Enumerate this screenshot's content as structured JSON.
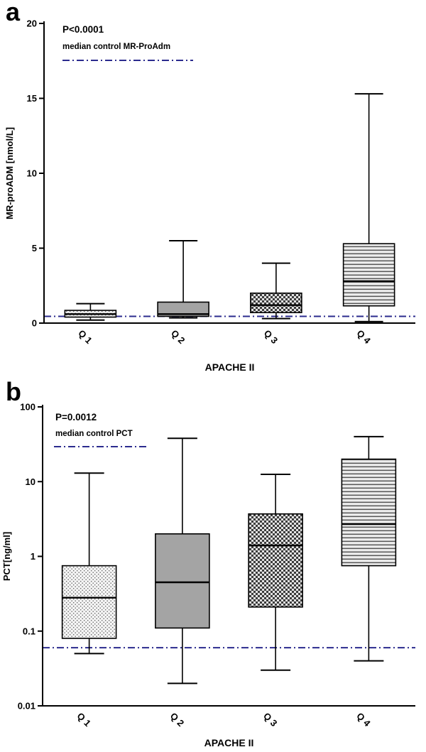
{
  "figure_title": "",
  "chart_data": [
    {
      "type": "box",
      "panel": "a",
      "annotation_p": "P<0.0001",
      "annotation_control": "median control MR-ProAdm",
      "control_line_value": 0.45,
      "control_line_color": "#2b2b8e",
      "xlabel": "APACHE II",
      "ylabel": "MR-proADM [nmol/L]",
      "yscale": "linear",
      "ylim": [
        0,
        20
      ],
      "yticks": [
        0,
        5,
        10,
        15,
        20
      ],
      "ytick_labels": [
        "0",
        "5",
        "10",
        "15",
        "20"
      ],
      "categories": [
        "Q 1",
        "Q 2",
        "Q 3",
        "Q 4"
      ],
      "boxes": [
        {
          "label": "Q 1",
          "whisker_low": 0.2,
          "q1": 0.4,
          "median": 0.6,
          "q3": 0.85,
          "whisker_high": 1.3,
          "pattern": "dots"
        },
        {
          "label": "Q 2",
          "whisker_low": 0.35,
          "q1": 0.45,
          "median": 0.6,
          "q3": 1.4,
          "whisker_high": 5.5,
          "pattern": "gray"
        },
        {
          "label": "Q 3",
          "whisker_low": 0.3,
          "q1": 0.7,
          "median": 1.2,
          "q3": 2.0,
          "whisker_high": 4.0,
          "pattern": "checker"
        },
        {
          "label": "Q 4",
          "whisker_low": 0.1,
          "q1": 1.15,
          "median": 2.8,
          "q3": 5.3,
          "whisker_high": 15.3,
          "pattern": "hlines"
        }
      ],
      "legend_position": "top-left",
      "grid": false
    },
    {
      "type": "box",
      "panel": "b",
      "annotation_p": "P=0.0012",
      "annotation_control": "median control PCT",
      "control_line_value": 0.06,
      "control_line_color": "#2b2b8e",
      "xlabel": "APACHE II",
      "ylabel": "PCT[ng/ml]",
      "yscale": "log",
      "ylim": [
        0.01,
        100
      ],
      "yticks": [
        0.01,
        0.1,
        1,
        10,
        100
      ],
      "ytick_labels": [
        "0.01",
        "0.1",
        "1",
        "10",
        "100"
      ],
      "categories": [
        "Q 1",
        "Q 2",
        "Q 3",
        "Q 4"
      ],
      "boxes": [
        {
          "label": "Q 1",
          "whisker_low": 0.05,
          "q1": 0.08,
          "median": 0.28,
          "q3": 0.75,
          "whisker_high": 13,
          "pattern": "dots"
        },
        {
          "label": "Q 2",
          "whisker_low": 0.02,
          "q1": 0.11,
          "median": 0.45,
          "q3": 2.0,
          "whisker_high": 38,
          "pattern": "gray"
        },
        {
          "label": "Q 3",
          "whisker_low": 0.03,
          "q1": 0.21,
          "median": 1.4,
          "q3": 3.7,
          "whisker_high": 12.5,
          "pattern": "checker"
        },
        {
          "label": "Q 4",
          "whisker_low": 0.04,
          "q1": 0.75,
          "median": 2.7,
          "q3": 20,
          "whisker_high": 40,
          "pattern": "hlines"
        }
      ],
      "legend_position": "top-left",
      "grid": false
    }
  ]
}
